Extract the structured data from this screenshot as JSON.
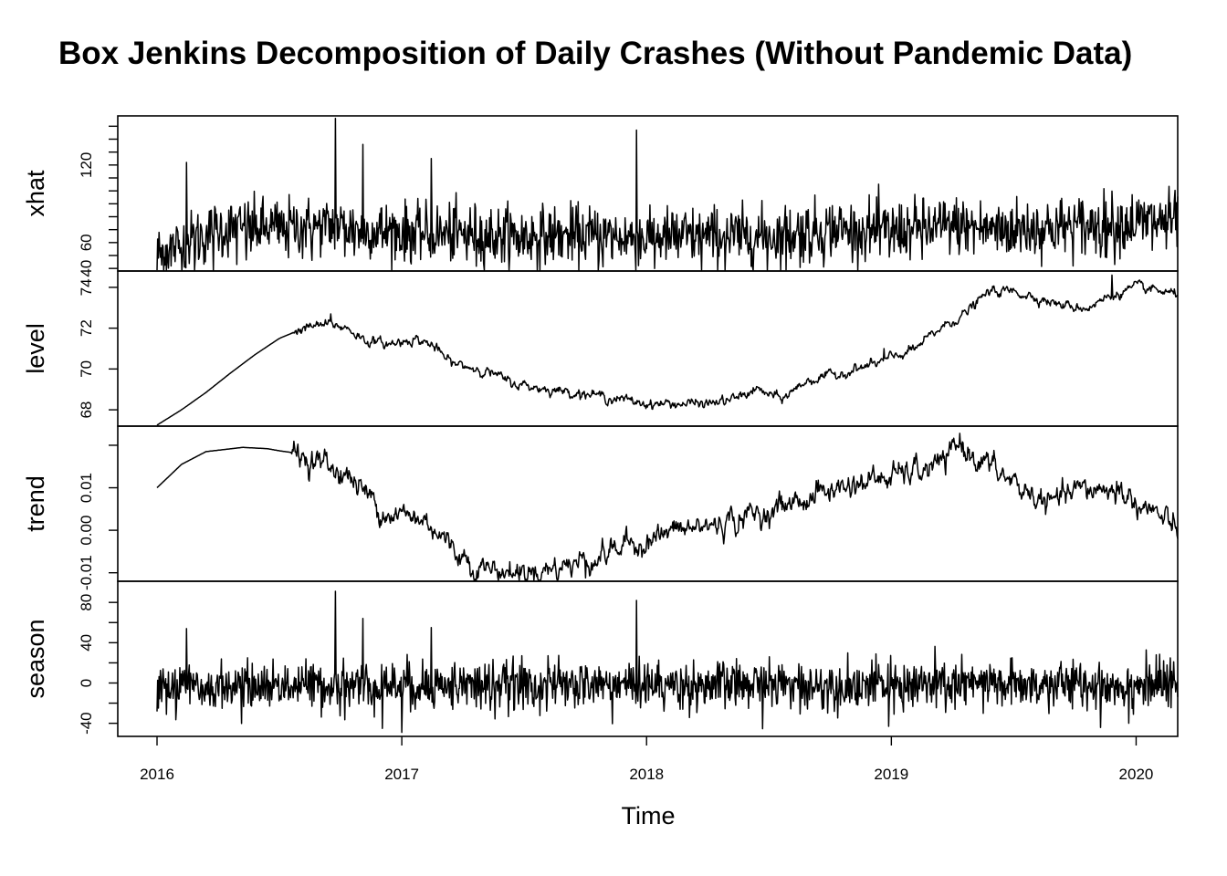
{
  "chart_data": {
    "type": "line",
    "title": "Box Jenkins Decomposition of Daily Crashes (Without Pandemic Data)",
    "xlabel": "Time",
    "x_start": 2016.0,
    "x_end": 2020.17,
    "xlim": [
      2016.0,
      2020.17
    ],
    "x_ticks": [
      2016,
      2017,
      2018,
      2019,
      2020
    ],
    "x_tick_labels": [
      "2016",
      "2017",
      "2018",
      "2019",
      "2020"
    ],
    "panels": [
      {
        "name": "xhat",
        "ylim": [
          38,
          158
        ],
        "y_ticks": [
          40,
          60,
          120
        ],
        "y_tick_labels": [
          "40",
          "60",
          "120"
        ],
        "y_minor_ticks": [
          40,
          50,
          60,
          70,
          80,
          90,
          100,
          110,
          120,
          130,
          140,
          150
        ],
        "anchors": [
          [
            2016.0,
            52
          ],
          [
            2016.25,
            71
          ],
          [
            2016.5,
            73
          ],
          [
            2016.7,
            74
          ],
          [
            2017.0,
            69
          ],
          [
            2017.25,
            68
          ],
          [
            2017.5,
            66
          ],
          [
            2017.75,
            67
          ],
          [
            2018.0,
            65
          ],
          [
            2018.25,
            66
          ],
          [
            2018.5,
            66
          ],
          [
            2018.75,
            72
          ],
          [
            2019.0,
            70
          ],
          [
            2019.25,
            74
          ],
          [
            2019.5,
            72
          ],
          [
            2019.75,
            74
          ],
          [
            2020.0,
            77
          ],
          [
            2020.17,
            78
          ]
        ],
        "spikes": [
          [
            2016.12,
            122
          ],
          [
            2016.73,
            156
          ],
          [
            2016.84,
            136
          ],
          [
            2017.12,
            125
          ],
          [
            2017.96,
            147
          ]
        ]
      },
      {
        "name": "level",
        "ylim": [
          67.2,
          74.8
        ],
        "y_ticks": [
          68,
          70,
          72,
          74
        ],
        "y_tick_labels": [
          "68",
          "70",
          "72",
          "74"
        ],
        "anchors": [
          [
            2016.0,
            67.25
          ],
          [
            2016.1,
            68.0
          ],
          [
            2016.2,
            68.85
          ],
          [
            2016.3,
            69.8
          ],
          [
            2016.4,
            70.7
          ],
          [
            2016.5,
            71.5
          ],
          [
            2016.6,
            72.0
          ],
          [
            2016.7,
            72.2
          ],
          [
            2016.78,
            72.0
          ],
          [
            2016.85,
            71.4
          ],
          [
            2016.95,
            71.2
          ],
          [
            2017.05,
            71.5
          ],
          [
            2017.12,
            71.2
          ],
          [
            2017.2,
            70.3
          ],
          [
            2017.35,
            69.9
          ],
          [
            2017.45,
            69.3
          ],
          [
            2017.6,
            69.0
          ],
          [
            2017.75,
            68.8
          ],
          [
            2017.9,
            68.5
          ],
          [
            2018.0,
            68.3
          ],
          [
            2018.1,
            68.3
          ],
          [
            2018.25,
            68.3
          ],
          [
            2018.35,
            68.5
          ],
          [
            2018.45,
            69.0
          ],
          [
            2018.55,
            68.5
          ],
          [
            2018.65,
            69.4
          ],
          [
            2018.8,
            69.8
          ],
          [
            2018.95,
            70.3
          ],
          [
            2019.1,
            71.0
          ],
          [
            2019.2,
            72.0
          ],
          [
            2019.3,
            72.7
          ],
          [
            2019.4,
            73.8
          ],
          [
            2019.5,
            73.8
          ],
          [
            2019.6,
            73.5
          ],
          [
            2019.7,
            73.1
          ],
          [
            2019.8,
            73.0
          ],
          [
            2019.9,
            73.6
          ],
          [
            2020.0,
            74.0
          ],
          [
            2020.1,
            73.8
          ],
          [
            2020.17,
            73.6
          ]
        ],
        "spikes": [
          [
            2016.71,
            72.7
          ],
          [
            2018.97,
            71.0
          ],
          [
            2019.9,
            74.6
          ]
        ]
      },
      {
        "name": "trend",
        "ylim": [
          -0.012,
          0.0245
        ],
        "y_ticks": [
          -0.01,
          0.0,
          0.01
        ],
        "y_tick_labels": [
          "-0.01",
          "0.00",
          "0.01"
        ],
        "y_minor_ticks": [
          -0.01,
          0.0,
          0.01,
          0.02
        ],
        "anchors": [
          [
            2016.0,
            0.01
          ],
          [
            2016.1,
            0.0155
          ],
          [
            2016.2,
            0.0185
          ],
          [
            2016.35,
            0.0195
          ],
          [
            2016.45,
            0.0192
          ],
          [
            2016.5,
            0.0187
          ],
          [
            2016.55,
            0.0183
          ],
          [
            2016.63,
            0.0168
          ],
          [
            2016.7,
            0.0152
          ],
          [
            2016.75,
            0.0138
          ],
          [
            2016.8,
            0.0118
          ],
          [
            2016.85,
            0.0092
          ],
          [
            2016.9,
            0.0058
          ],
          [
            2016.97,
            0.0038
          ],
          [
            2017.05,
            0.0028
          ],
          [
            2017.12,
            0.0018
          ],
          [
            2017.2,
            -0.0038
          ],
          [
            2017.3,
            -0.0082
          ],
          [
            2017.4,
            -0.0095
          ],
          [
            2017.5,
            -0.01
          ],
          [
            2017.62,
            -0.0088
          ],
          [
            2017.72,
            -0.0075
          ],
          [
            2017.82,
            -0.0055
          ],
          [
            2017.95,
            -0.003
          ],
          [
            2018.1,
            -0.0005
          ],
          [
            2018.25,
            0.001
          ],
          [
            2018.4,
            0.003
          ],
          [
            2018.55,
            0.0055
          ],
          [
            2018.7,
            0.0085
          ],
          [
            2018.85,
            0.011
          ],
          [
            2019.0,
            0.0125
          ],
          [
            2019.12,
            0.014
          ],
          [
            2019.22,
            0.016
          ],
          [
            2019.28,
            0.02
          ],
          [
            2019.35,
            0.017
          ],
          [
            2019.45,
            0.013
          ],
          [
            2019.55,
            0.009
          ],
          [
            2019.65,
            0.006
          ],
          [
            2019.75,
            0.009
          ],
          [
            2019.85,
            0.01
          ],
          [
            2019.95,
            0.0085
          ],
          [
            2020.05,
            0.005
          ],
          [
            2020.12,
            0.002
          ],
          [
            2020.17,
            -0.001
          ]
        ],
        "spikes": [
          [
            2016.58,
            0.017
          ],
          [
            2016.75,
            0.014
          ],
          [
            2016.85,
            0.0085
          ],
          [
            2017.05,
            0.0045
          ],
          [
            2017.48,
            -0.0122
          ],
          [
            2017.75,
            -0.0112
          ],
          [
            2018.7,
            0.0118
          ],
          [
            2019.28,
            0.0228
          ],
          [
            2019.92,
            0.0115
          ],
          [
            2020.17,
            -0.002
          ]
        ]
      },
      {
        "name": "season",
        "ylim": [
          -53,
          101
        ],
        "y_ticks": [
          -40,
          0,
          40,
          80
        ],
        "y_tick_labels": [
          "-40",
          "0",
          "40",
          "80"
        ],
        "y_minor_ticks": [
          -40,
          -20,
          0,
          20,
          40,
          60,
          80
        ],
        "anchors": [
          [
            2016.0,
            -5
          ],
          [
            2016.5,
            0
          ],
          [
            2017.0,
            0
          ],
          [
            2017.5,
            0
          ],
          [
            2018.0,
            0
          ],
          [
            2018.5,
            0
          ],
          [
            2019.0,
            0
          ],
          [
            2019.5,
            0
          ],
          [
            2020.0,
            0
          ],
          [
            2020.17,
            0
          ]
        ],
        "spikes": [
          [
            2016.12,
            54
          ],
          [
            2016.73,
            91
          ],
          [
            2016.84,
            64
          ],
          [
            2017.12,
            55
          ],
          [
            2017.96,
            82
          ],
          [
            2016.92,
            -45
          ],
          [
            2017.0,
            -49
          ],
          [
            2018.99,
            -43
          ],
          [
            2019.97,
            -40
          ]
        ]
      }
    ]
  }
}
